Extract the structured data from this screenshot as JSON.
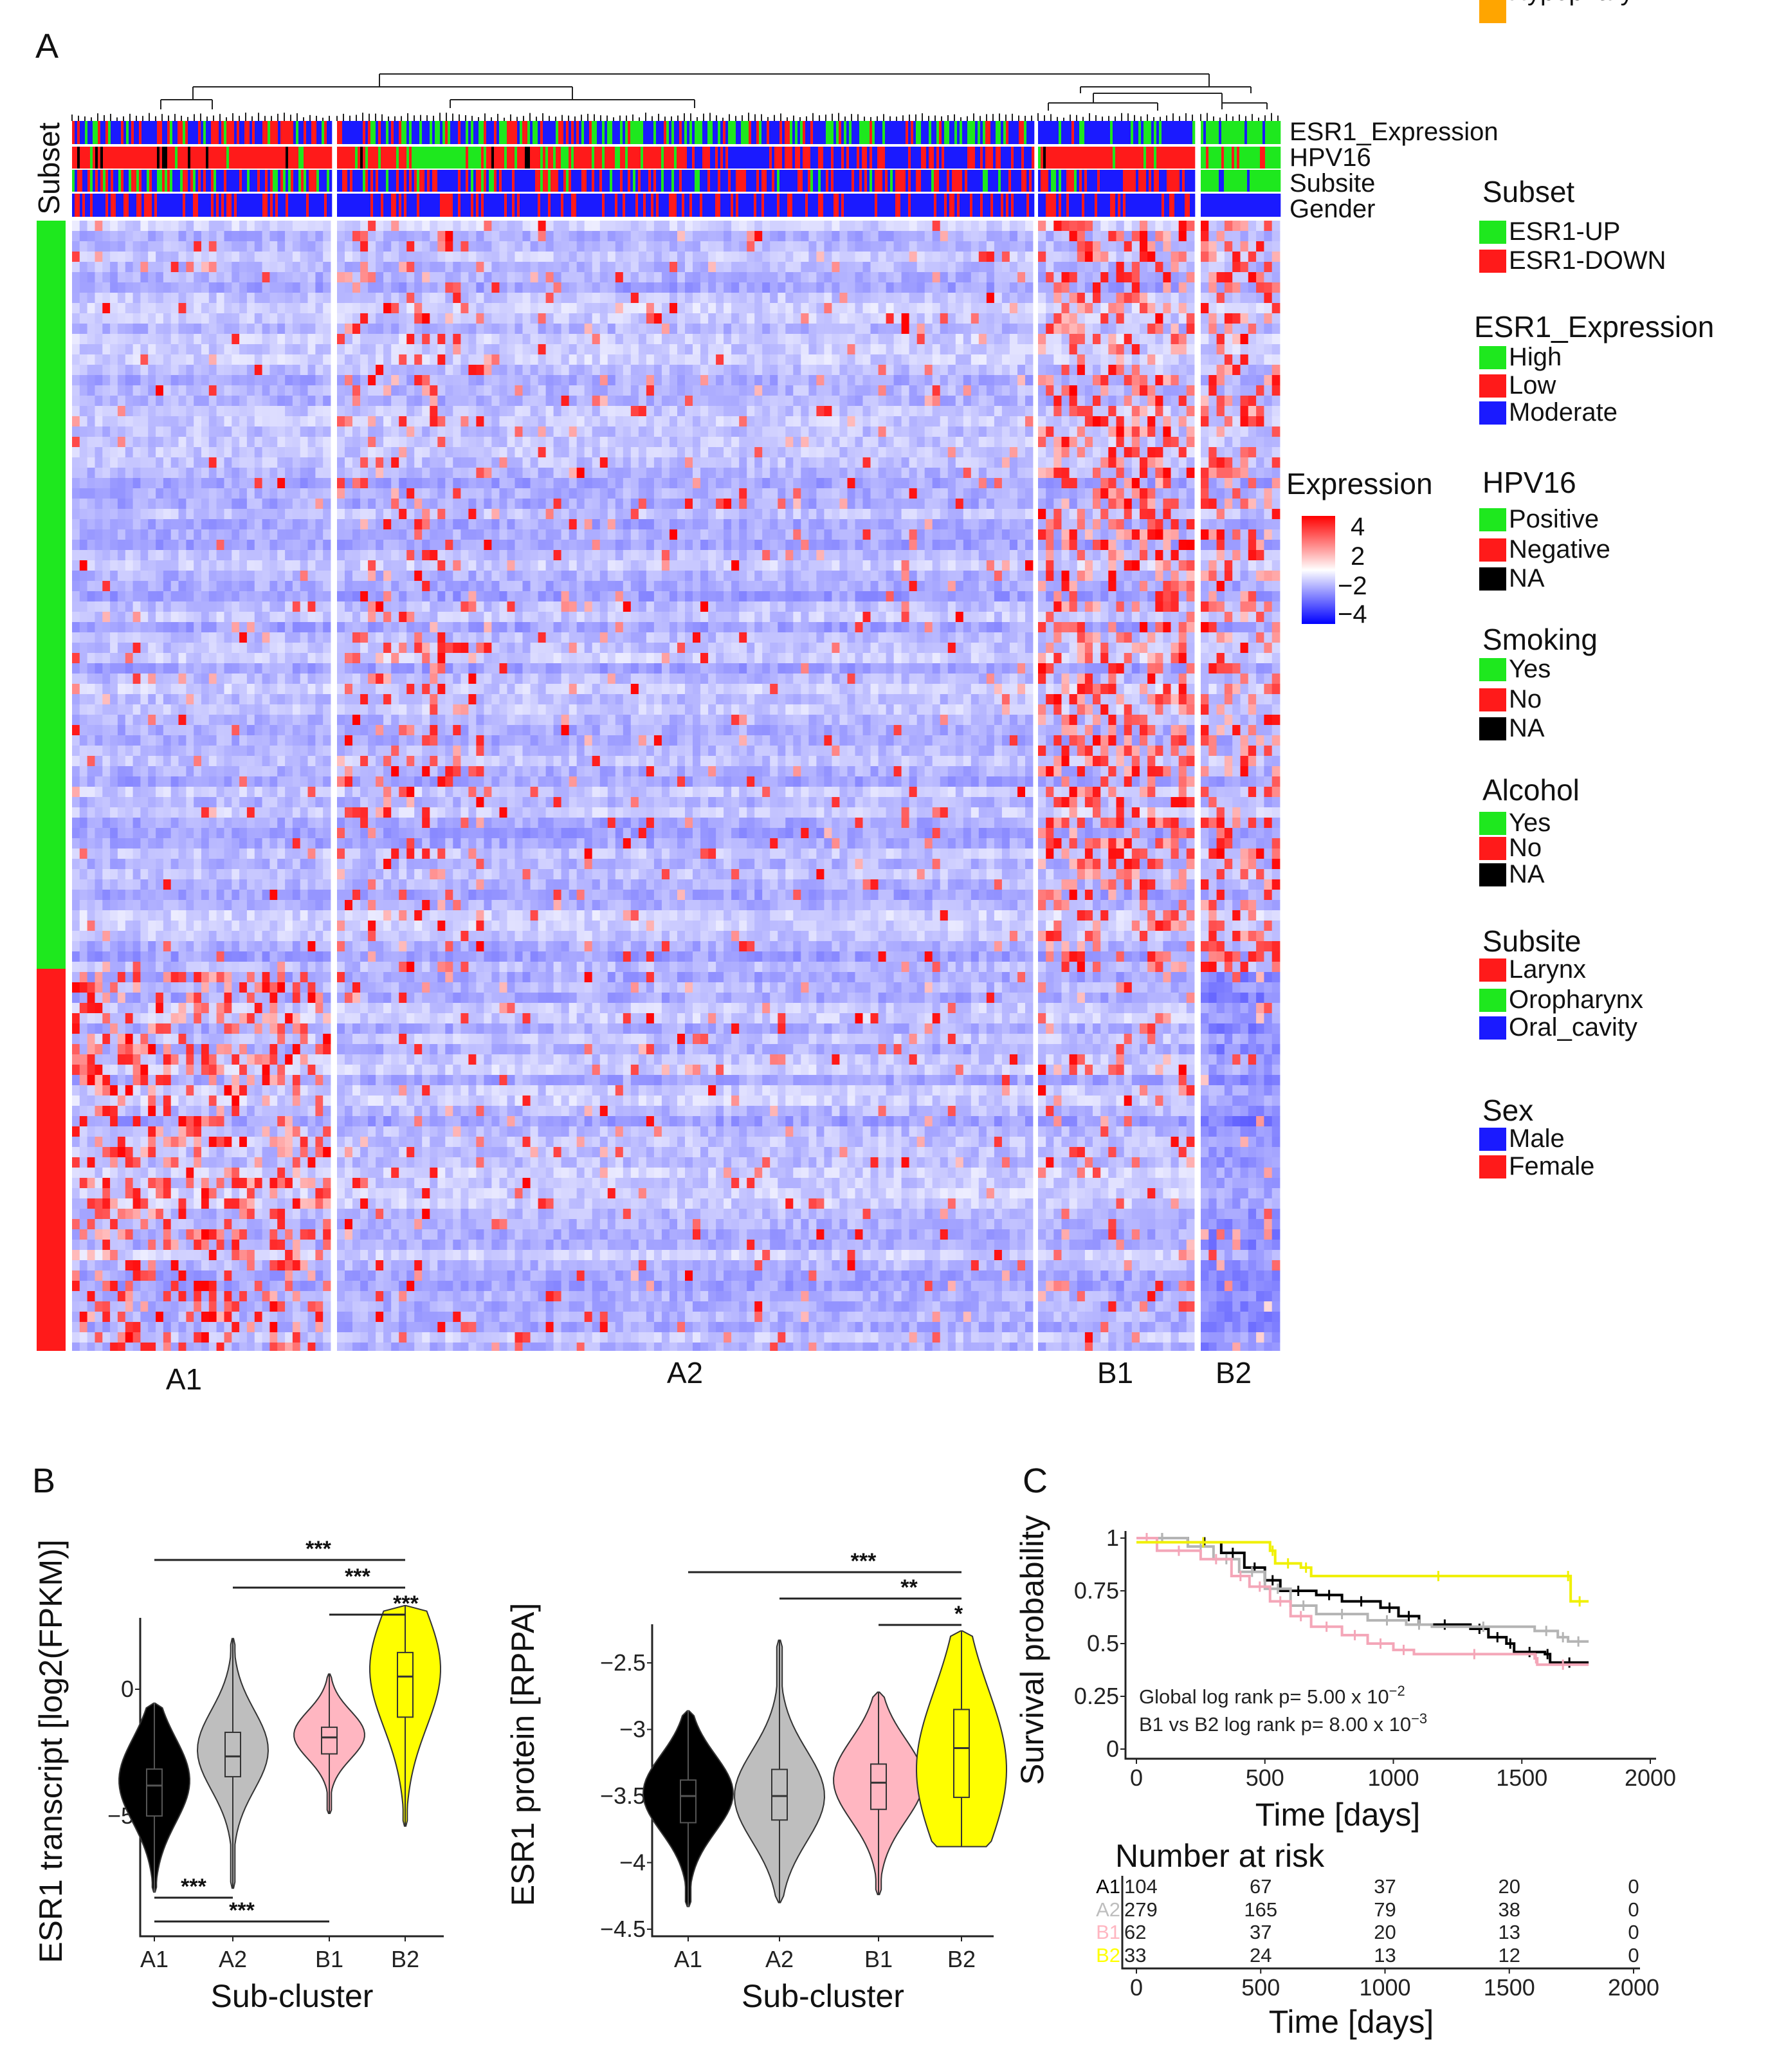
{
  "panels": {
    "a": "A",
    "b": "B",
    "c": "C"
  },
  "chart_data": [
    {
      "type": "heatmap",
      "panel": "A",
      "row_annotation_label": "Subset",
      "row_groups": [
        {
          "name": "ESR1-UP",
          "color": "#1ee81e"
        },
        {
          "name": "ESR1-DOWN",
          "color": "#ff1a1a"
        }
      ],
      "clusters": [
        "A1",
        "A2",
        "B1",
        "B2"
      ],
      "column_tracks": [
        "ESR1_Expression",
        "HPV16",
        "Subsite",
        "Gender"
      ],
      "colorbar": {
        "title": "Expression",
        "ticks": [
          "4",
          "2",
          "−2",
          "−4"
        ],
        "range": [
          -4,
          4
        ],
        "low": "#0000ff",
        "mid": "#ffffff",
        "high": "#ff0000"
      },
      "legends": [
        {
          "title": "Subset",
          "items": [
            {
              "label": "ESR1-UP",
              "color": "#1ee81e"
            },
            {
              "label": "ESR1-DOWN",
              "color": "#ff1a1a"
            }
          ]
        },
        {
          "title": "ESR1_Expression",
          "items": [
            {
              "label": "High",
              "color": "#1ee81e"
            },
            {
              "label": "Low",
              "color": "#ff1a1a"
            },
            {
              "label": "Moderate",
              "color": "#1a1aff"
            }
          ]
        },
        {
          "title": "HPV16",
          "items": [
            {
              "label": "Positive",
              "color": "#1ee81e"
            },
            {
              "label": "Negative",
              "color": "#ff1a1a"
            },
            {
              "label": "NA",
              "color": "#000000"
            }
          ]
        },
        {
          "title": "Smoking",
          "items": [
            {
              "label": "Yes",
              "color": "#1ee81e"
            },
            {
              "label": "No",
              "color": "#ff1a1a"
            },
            {
              "label": "NA",
              "color": "#000000"
            }
          ]
        },
        {
          "title": "Alcohol",
          "items": [
            {
              "label": "Yes",
              "color": "#1ee81e"
            },
            {
              "label": "No",
              "color": "#ff1a1a"
            },
            {
              "label": "NA",
              "color": "#000000"
            }
          ]
        },
        {
          "title": "Subsite",
          "items": [
            {
              "label": "Larynx",
              "color": "#ff1a1a"
            },
            {
              "label": "Oropharynx",
              "color": "#1ee81e"
            },
            {
              "label": "Oral_cavity",
              "color": "#1a1aff"
            },
            {
              "label": "Hypopharynx",
              "color": "#ffa500"
            }
          ]
        },
        {
          "title": "Sex",
          "items": [
            {
              "label": "Male",
              "color": "#1a1aff"
            },
            {
              "label": "Female",
              "color": "#ff1a1a"
            }
          ]
        }
      ]
    },
    {
      "type": "violin",
      "panel": "B",
      "xlabel": "Sub-cluster",
      "ylabel": "ESR1 transcript [log2(FPKM)]",
      "yticks": [
        0,
        -5
      ],
      "ytick_labels": [
        "0",
        "−5"
      ],
      "categories": [
        "A1",
        "A2",
        "B1",
        "B2"
      ],
      "colors": [
        "#000000",
        "#bebebe",
        "#ffb6c1",
        "#ffff00"
      ],
      "stats": [
        {
          "min": -8.0,
          "q1": -5.0,
          "median": -3.8,
          "q3": -3.15,
          "max": -0.55,
          "mode": -3.6
        },
        {
          "min": -7.85,
          "q1": -3.45,
          "median": -2.65,
          "q3": -1.7,
          "max": 2.0,
          "mode": -2.4
        },
        {
          "min": -4.9,
          "q1": -2.55,
          "median": -1.9,
          "q3": -1.5,
          "max": 0.6,
          "mode": -1.8
        },
        {
          "min": -5.4,
          "q1": -1.1,
          "median": 0.5,
          "q3": 1.45,
          "max": 3.3,
          "mode": 0.8
        }
      ],
      "significance": [
        {
          "from": "A1",
          "to": "B2",
          "label": "***",
          "position": "top"
        },
        {
          "from": "A2",
          "to": "B2",
          "label": "***",
          "position": "top"
        },
        {
          "from": "B1",
          "to": "B2",
          "label": "***",
          "position": "top"
        },
        {
          "from": "A1",
          "to": "A2",
          "label": "***",
          "position": "bottom"
        },
        {
          "from": "A1",
          "to": "B1",
          "label": "***",
          "position": "bottom"
        }
      ]
    },
    {
      "type": "violin",
      "panel": "B",
      "xlabel": "Sub-cluster",
      "ylabel": "ESR1 protein [RPPA]",
      "yticks": [
        -2.5,
        -3,
        -3.5,
        -4,
        -4.5
      ],
      "ytick_labels": [
        "−2.5",
        "−3",
        "−3.5",
        "−4",
        "−4.5"
      ],
      "categories": [
        "A1",
        "A2",
        "B1",
        "B2"
      ],
      "colors": [
        "#000000",
        "#bebebe",
        "#ffb6c1",
        "#ffff00"
      ],
      "stats": [
        {
          "min": -4.33,
          "q1": -3.7,
          "median": -3.5,
          "q3": -3.38,
          "max": -2.86,
          "mode": -3.48
        },
        {
          "min": -4.3,
          "q1": -3.68,
          "median": -3.5,
          "q3": -3.3,
          "max": -2.33,
          "mode": -3.5
        },
        {
          "min": -4.24,
          "q1": -3.6,
          "median": -3.4,
          "q3": -3.26,
          "max": -2.72,
          "mode": -3.38
        },
        {
          "min": -3.88,
          "q1": -3.51,
          "median": -3.14,
          "q3": -2.85,
          "max": -2.26,
          "mode": -3.3
        }
      ],
      "significance": [
        {
          "from": "A1",
          "to": "B2",
          "label": "***",
          "position": "top"
        },
        {
          "from": "A2",
          "to": "B2",
          "label": "**",
          "position": "top"
        },
        {
          "from": "B1",
          "to": "B2",
          "label": "*",
          "position": "top"
        }
      ]
    },
    {
      "type": "line",
      "subtype": "kaplan-meier",
      "panel": "C",
      "xlabel": "Time [days]",
      "ylabel": "Survival probability",
      "xlim": [
        0,
        2000
      ],
      "ylim": [
        0,
        1
      ],
      "xticks": [
        "0",
        "500",
        "1000",
        "1500",
        "2000"
      ],
      "yticks": [
        "1",
        "0.75",
        "0.5",
        "0.25",
        "0"
      ],
      "annotations": [
        {
          "text": "Global log rank p= 5.00 x 10",
          "sup": "−2"
        },
        {
          "text": "B1 vs B2 log rank p= 8.00 x 10",
          "sup": "−3"
        }
      ],
      "series": [
        {
          "name": "A1",
          "color": "#000000",
          "points": [
            [
              0,
              1
            ],
            [
              200,
              0.98
            ],
            [
              330,
              0.93
            ],
            [
              420,
              0.86
            ],
            [
              500,
              0.8
            ],
            [
              560,
              0.75
            ],
            [
              700,
              0.73
            ],
            [
              800,
              0.7
            ],
            [
              950,
              0.67
            ],
            [
              1020,
              0.63
            ],
            [
              1100,
              0.59
            ],
            [
              1300,
              0.57
            ],
            [
              1370,
              0.53
            ],
            [
              1440,
              0.5
            ],
            [
              1470,
              0.46
            ],
            [
              1590,
              0.45
            ],
            [
              1610,
              0.41
            ],
            [
              1760,
              0.41
            ]
          ]
        },
        {
          "name": "A2",
          "color": "#b4b4b4",
          "points": [
            [
              0,
              1
            ],
            [
              200,
              0.96
            ],
            [
              300,
              0.9
            ],
            [
              400,
              0.84
            ],
            [
              500,
              0.76
            ],
            [
              600,
              0.68
            ],
            [
              700,
              0.64
            ],
            [
              900,
              0.61
            ],
            [
              1050,
              0.59
            ],
            [
              1150,
              0.58
            ],
            [
              1550,
              0.56
            ],
            [
              1640,
              0.53
            ],
            [
              1680,
              0.51
            ],
            [
              1760,
              0.51
            ]
          ]
        },
        {
          "name": "B1",
          "color": "#f4a6b8",
          "points": [
            [
              0,
              1
            ],
            [
              80,
              0.94
            ],
            [
              250,
              0.9
            ],
            [
              370,
              0.82
            ],
            [
              440,
              0.77
            ],
            [
              520,
              0.7
            ],
            [
              600,
              0.63
            ],
            [
              680,
              0.58
            ],
            [
              800,
              0.54
            ],
            [
              900,
              0.5
            ],
            [
              1000,
              0.47
            ],
            [
              1080,
              0.45
            ],
            [
              1550,
              0.43
            ],
            [
              1560,
              0.4
            ],
            [
              1760,
              0.4
            ]
          ]
        },
        {
          "name": "B2",
          "color": "#f0f000",
          "points": [
            [
              0,
              0.98
            ],
            [
              520,
              0.94
            ],
            [
              540,
              0.88
            ],
            [
              640,
              0.86
            ],
            [
              680,
              0.82
            ],
            [
              1670,
              0.82
            ],
            [
              1690,
              0.7
            ],
            [
              1760,
              0.7
            ]
          ]
        }
      ]
    },
    {
      "type": "table",
      "panel": "C",
      "title": "Number at risk",
      "xlabel": "Time [days]",
      "columns": [
        "0",
        "500",
        "1000",
        "1500",
        "2000"
      ],
      "rows": [
        {
          "name": "A1",
          "color": "#000000",
          "values": [
            "104",
            "67",
            "37",
            "20",
            "0"
          ]
        },
        {
          "name": "A2",
          "color": "#bebebe",
          "values": [
            "279",
            "165",
            "79",
            "38",
            "0"
          ]
        },
        {
          "name": "B1",
          "color": "#ffb6c1",
          "values": [
            "62",
            "37",
            "20",
            "13",
            "0"
          ]
        },
        {
          "name": "B2",
          "color": "#ffff00",
          "values": [
            "33",
            "24",
            "13",
            "12",
            "0"
          ]
        }
      ]
    }
  ]
}
